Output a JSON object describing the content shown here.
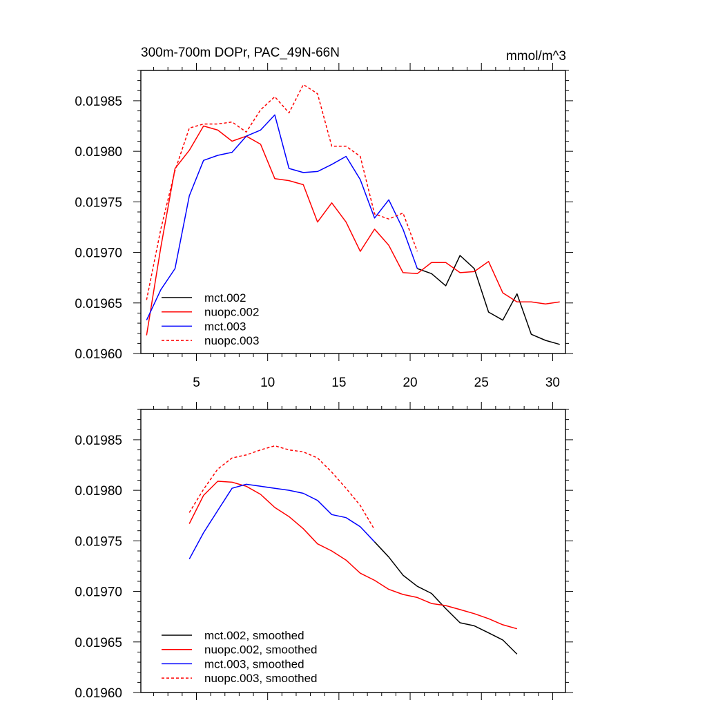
{
  "colors": {
    "black": "#000000",
    "red": "#ff0000",
    "blue": "#0000ff"
  },
  "chart_data": [
    {
      "type": "line",
      "title": "300m-700m DOPr, PAC_49N-66N",
      "units": "mmol/m^3",
      "xlim": [
        1.1,
        30.9
      ],
      "ylim": [
        0.0196,
        0.01988
      ],
      "xticks": [
        5,
        10,
        15,
        20,
        25,
        30
      ],
      "xtick_labels": [
        "5",
        "10",
        "15",
        "20",
        "25",
        "30"
      ],
      "yticks": [
        0.0196,
        0.01965,
        0.0197,
        0.01975,
        0.0198,
        0.01985
      ],
      "ytick_labels": [
        "0.01960",
        "0.01965",
        "0.01970",
        "0.01975",
        "0.01980",
        "0.01985"
      ],
      "legend_position": "bottom-left",
      "series": [
        {
          "name": "mct.002",
          "color": "#000000",
          "dash": false,
          "x": [
            20.5,
            21.5,
            22.5,
            23.5,
            24.5,
            25.5,
            26.5,
            27.5,
            28.5,
            29.5,
            30.5
          ],
          "values": [
            0.019684,
            0.019679,
            0.019667,
            0.019697,
            0.019684,
            0.019641,
            0.019633,
            0.019659,
            0.019619,
            0.019613,
            0.019609
          ]
        },
        {
          "name": "nuopc.002",
          "color": "#ff0000",
          "dash": false,
          "x": [
            1.5,
            2.5,
            3.5,
            4.5,
            5.5,
            6.5,
            7.5,
            8.5,
            9.5,
            10.5,
            11.5,
            12.5,
            13.5,
            14.5,
            15.5,
            16.5,
            17.5,
            18.5,
            19.5,
            20.5,
            21.5,
            22.5,
            23.5,
            24.5,
            25.5,
            26.5,
            27.5,
            28.5,
            29.5,
            30.5
          ],
          "values": [
            0.019618,
            0.019705,
            0.019783,
            0.019801,
            0.019825,
            0.019821,
            0.01981,
            0.019815,
            0.019807,
            0.019773,
            0.019771,
            0.019767,
            0.01973,
            0.019749,
            0.01973,
            0.019701,
            0.019723,
            0.019707,
            0.01968,
            0.019679,
            0.01969,
            0.01969,
            0.01968,
            0.019681,
            0.019691,
            0.01966,
            0.019651,
            0.019651,
            0.019649,
            0.019651
          ]
        },
        {
          "name": "mct.003",
          "color": "#0000ff",
          "dash": false,
          "x": [
            1.5,
            2.5,
            3.5,
            4.5,
            5.5,
            6.5,
            7.5,
            8.5,
            9.5,
            10.5,
            11.5,
            12.5,
            13.5,
            14.5,
            15.5,
            16.5,
            17.5,
            18.5,
            19.5,
            20.5
          ],
          "values": [
            0.019633,
            0.019663,
            0.019684,
            0.019756,
            0.019791,
            0.019796,
            0.019799,
            0.019815,
            0.019821,
            0.019836,
            0.019783,
            0.019779,
            0.01978,
            0.019787,
            0.019795,
            0.019772,
            0.019734,
            0.019752,
            0.019723,
            0.019684
          ]
        },
        {
          "name": "nuopc.003",
          "color": "#ff0000",
          "dash": true,
          "x": [
            1.5,
            2.5,
            3.5,
            4.5,
            5.5,
            6.5,
            7.5,
            8.5,
            9.5,
            10.5,
            11.5,
            12.5,
            13.5,
            14.5,
            15.5,
            16.5,
            17.5,
            18.5,
            19.5,
            20.5
          ],
          "values": [
            0.019653,
            0.019723,
            0.019781,
            0.019823,
            0.019827,
            0.019827,
            0.019829,
            0.019819,
            0.019841,
            0.019854,
            0.019838,
            0.019866,
            0.019857,
            0.019805,
            0.019805,
            0.019795,
            0.019738,
            0.019733,
            0.019739,
            0.019701
          ]
        }
      ]
    },
    {
      "type": "line",
      "xlim": [
        1.1,
        30.9
      ],
      "ylim": [
        0.0196,
        0.01988
      ],
      "xticks": [
        5,
        10,
        15,
        20,
        25,
        30
      ],
      "yticks": [
        0.0196,
        0.01965,
        0.0197,
        0.01975,
        0.0198,
        0.01985
      ],
      "ytick_labels": [
        "0.01960",
        "0.01965",
        "0.01970",
        "0.01975",
        "0.01980",
        "0.01985"
      ],
      "legend_position": "bottom-left",
      "series": [
        {
          "name": "mct.002, smoothed",
          "color": "#000000",
          "dash": false,
          "x": [
            17.5,
            18.5,
            19.5,
            20.5,
            21.5,
            22.5,
            23.5,
            24.5,
            25.5,
            26.5,
            27.5
          ],
          "values": [
            0.019749,
            0.019734,
            0.019716,
            0.019705,
            0.019698,
            0.019683,
            0.019669,
            0.019666,
            0.019659,
            0.019652,
            0.019638
          ]
        },
        {
          "name": "nuopc.002, smoothed",
          "color": "#ff0000",
          "dash": false,
          "x": [
            4.5,
            5.5,
            6.5,
            7.5,
            8.5,
            9.5,
            10.5,
            11.5,
            12.5,
            13.5,
            14.5,
            15.5,
            16.5,
            17.5,
            18.5,
            19.5,
            20.5,
            21.5,
            22.5,
            23.5,
            24.5,
            25.5,
            26.5,
            27.5
          ],
          "values": [
            0.019767,
            0.019795,
            0.019809,
            0.019808,
            0.019804,
            0.019796,
            0.019783,
            0.019774,
            0.019762,
            0.019747,
            0.01974,
            0.019731,
            0.019718,
            0.019711,
            0.019702,
            0.019697,
            0.019694,
            0.019688,
            0.019686,
            0.019682,
            0.019678,
            0.019673,
            0.019667,
            0.019663
          ]
        },
        {
          "name": "mct.003, smoothed",
          "color": "#0000ff",
          "dash": false,
          "x": [
            4.5,
            5.5,
            6.5,
            7.5,
            8.5,
            9.5,
            10.5,
            11.5,
            12.5,
            13.5,
            14.5,
            15.5,
            16.5,
            17.5
          ],
          "values": [
            0.019732,
            0.019758,
            0.01978,
            0.019802,
            0.019806,
            0.019804,
            0.019802,
            0.0198,
            0.019797,
            0.01979,
            0.019776,
            0.019773,
            0.019764,
            0.019749
          ]
        },
        {
          "name": "nuopc.003, smoothed",
          "color": "#ff0000",
          "dash": true,
          "x": [
            4.5,
            5.5,
            6.5,
            7.5,
            8.5,
            9.5,
            10.5,
            11.5,
            12.5,
            13.5,
            14.5,
            15.5,
            16.5,
            17.5
          ],
          "values": [
            0.019778,
            0.019801,
            0.019821,
            0.019832,
            0.019835,
            0.01984,
            0.019844,
            0.01984,
            0.019838,
            0.019832,
            0.019818,
            0.019802,
            0.019785,
            0.019761
          ]
        }
      ]
    }
  ]
}
